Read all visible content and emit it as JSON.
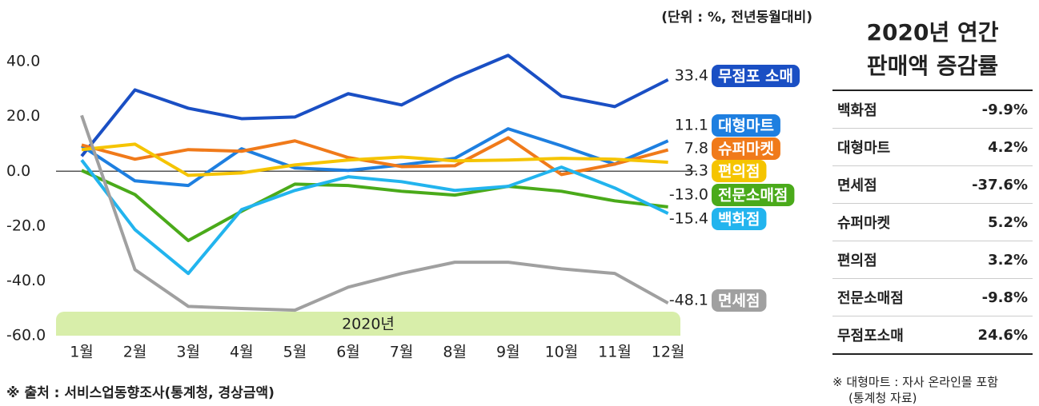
{
  "chart_data": {
    "type": "line",
    "annotations": [
      "(단위 : %, 전년동월대비)",
      "※ 출처 : 서비스업동향조사(통계청, 경상금액)",
      "2020년"
    ],
    "categories": [
      "1월",
      "2월",
      "3월",
      "4월",
      "5월",
      "6월",
      "7월",
      "8월",
      "9월",
      "10월",
      "11월",
      "12월"
    ],
    "ylim": [
      -60,
      45
    ],
    "yticks": [
      {
        "value": 40,
        "label": "40.0"
      },
      {
        "value": 20,
        "label": "20.0"
      },
      {
        "value": 0,
        "label": "0.0"
      },
      {
        "value": -20,
        "label": "-20.0"
      },
      {
        "value": -40,
        "label": "-40.0"
      },
      {
        "value": -60,
        "label": "-60.0"
      }
    ],
    "grid": false,
    "series": [
      {
        "name": "무점포 소매",
        "color": "#1a4fc4",
        "values": [
          5.5,
          29.7,
          23,
          19.2,
          19.8,
          28.3,
          24.2,
          34.1,
          42.3,
          27.4,
          23.6,
          33.4
        ],
        "value_labels": [
          null,
          null,
          null,
          null,
          null,
          null,
          null,
          null,
          null,
          null,
          null,
          "33.4"
        ]
      },
      {
        "name": "대형마트",
        "color": "#1e7fe0",
        "values": [
          9.3,
          -3.5,
          -5.2,
          8.2,
          1.2,
          0.3,
          2.3,
          4.7,
          15.5,
          9.3,
          2.6,
          11.1
        ],
        "value_labels": [
          null,
          null,
          null,
          null,
          null,
          null,
          null,
          null,
          null,
          null,
          null,
          "11.1"
        ]
      },
      {
        "name": "슈퍼마켓",
        "color": "#f07a1a",
        "values": [
          9.6,
          4.4,
          7.9,
          7.3,
          11.1,
          5.0,
          1.7,
          2.0,
          12.2,
          -1.2,
          2.6,
          7.8
        ],
        "value_labels": [
          null,
          null,
          null,
          null,
          null,
          null,
          null,
          null,
          null,
          null,
          null,
          "7.8"
        ]
      },
      {
        "name": "편의점",
        "color": "#f5c400",
        "values": [
          7.9,
          9.9,
          -1.5,
          -0.6,
          2.3,
          4.1,
          5.2,
          3.8,
          4.1,
          4.7,
          4.4,
          3.3
        ],
        "value_labels": [
          null,
          null,
          null,
          null,
          null,
          null,
          null,
          null,
          null,
          null,
          null,
          "3.3"
        ]
      },
      {
        "name": "전문소매점",
        "color": "#4aaa1a",
        "values": [
          0.3,
          -8.5,
          -25.3,
          -14.6,
          -4.7,
          -5.2,
          -7.3,
          -8.7,
          -5.5,
          -7.3,
          -10.8,
          -13.0
        ],
        "value_labels": [
          null,
          null,
          null,
          null,
          null,
          null,
          null,
          null,
          null,
          null,
          null,
          "-13.0"
        ]
      },
      {
        "name": "백화점",
        "color": "#22b4ee",
        "values": [
          4.1,
          -21.3,
          -37.3,
          -14.0,
          -7.0,
          -2.0,
          -3.8,
          -7.0,
          -5.5,
          1.5,
          -6.1,
          -15.4
        ],
        "value_labels": [
          null,
          null,
          null,
          null,
          null,
          null,
          null,
          null,
          null,
          null,
          null,
          "-15.4"
        ]
      },
      {
        "name": "면세점",
        "color": "#a0a0a0",
        "values": [
          20.4,
          -35.9,
          -49.3,
          -50.1,
          -50.7,
          -42.3,
          -37.3,
          -33.2,
          -33.2,
          -35.6,
          -37.3,
          -48.1
        ],
        "value_labels": [
          null,
          null,
          null,
          null,
          null,
          null,
          null,
          null,
          null,
          null,
          null,
          "-48.1"
        ]
      }
    ]
  },
  "side_table": {
    "title": [
      "2020년 연간",
      "판매액 증감률"
    ],
    "rows": [
      [
        "백화점",
        "-9.9%"
      ],
      [
        "대형마트",
        "4.2%"
      ],
      [
        "면세점",
        "-37.6%"
      ],
      [
        "슈퍼마켓",
        "5.2%"
      ],
      [
        "편의점",
        "3.2%"
      ],
      [
        "전문소매점",
        "-9.8%"
      ],
      [
        "무점포소매",
        "24.6%"
      ]
    ],
    "note": [
      "※ 대형마트 : 자사 온라인몰 포함",
      "(통계청 자료)"
    ]
  }
}
